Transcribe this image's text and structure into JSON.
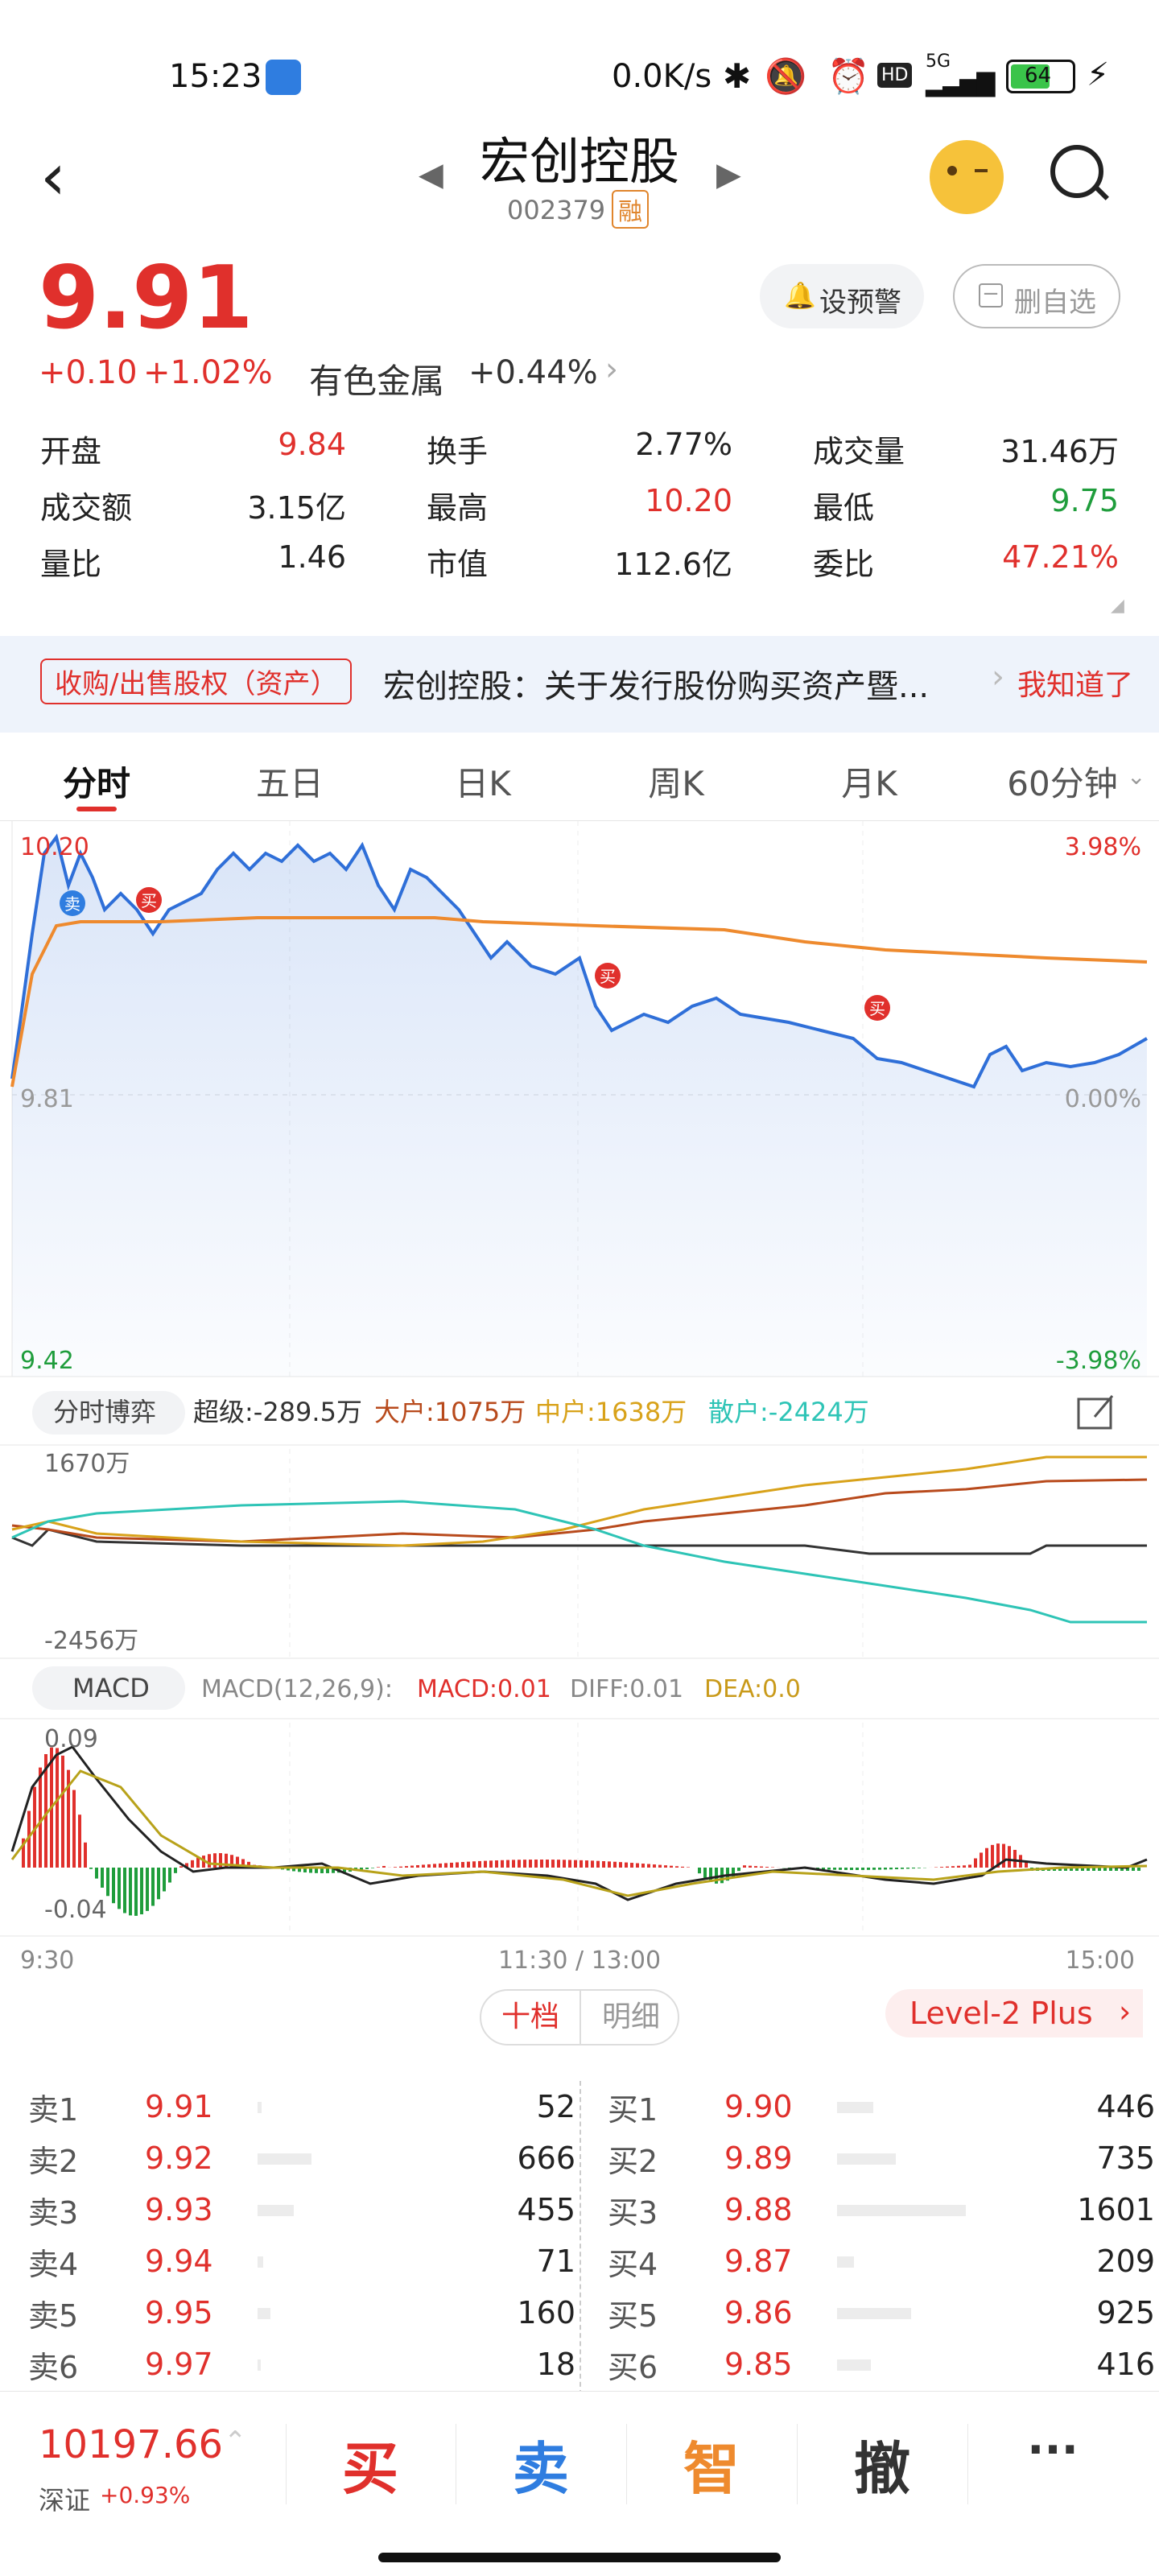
{
  "status": {
    "time": "15:23",
    "network_speed": "0.0K/s",
    "signal": "5G",
    "battery": "64"
  },
  "header": {
    "title": "宏创控股",
    "code": "002379",
    "margin_badge": "融"
  },
  "quote": {
    "price": "9.91",
    "change": "+0.10",
    "change_pct": "+1.02%",
    "sector": "有色金属",
    "sector_pct": "+0.44%",
    "alert_button": "设预警",
    "remove_watch_button": "删自选",
    "stats": [
      {
        "label": "开盘",
        "value": "9.84",
        "color": "red"
      },
      {
        "label": "换手",
        "value": "2.77%",
        "color": "dark"
      },
      {
        "label": "成交量",
        "value": "31.46万",
        "color": "dark"
      },
      {
        "label": "成交额",
        "value": "3.15亿",
        "color": "dark"
      },
      {
        "label": "最高",
        "value": "10.20",
        "color": "red"
      },
      {
        "label": "最低",
        "value": "9.75",
        "color": "green"
      },
      {
        "label": "量比",
        "value": "1.46",
        "color": "dark"
      },
      {
        "label": "市值",
        "value": "112.6亿",
        "color": "dark"
      },
      {
        "label": "委比",
        "value": "47.21%",
        "color": "red"
      }
    ]
  },
  "notice": {
    "tag": "收购/出售股权（资产）",
    "text": "宏创控股：关于发行股份购买资产暨...",
    "action": "我知道了"
  },
  "tabs": [
    "分时",
    "五日",
    "日K",
    "周K",
    "月K",
    "60分钟"
  ],
  "chart": {
    "price_high": "10.20",
    "price_mid": "9.81",
    "price_low": "9.42",
    "pct_high": "3.98%",
    "pct_mid": "0.00%",
    "pct_low": "-3.98%",
    "buy_marker": "买",
    "sell_marker": "卖",
    "flow_tab": "分时博弈",
    "flow_super": "超级:-289.5万",
    "flow_large": "大户:1075万",
    "flow_medium": "中户:1638万",
    "flow_retail": "散户:-2424万",
    "flow_top": "1670万",
    "flow_bottom": "-2456万",
    "macd_tab": "MACD",
    "macd_params": "MACD(12,26,9):",
    "macd_val": "MACD:0.01",
    "diff_val": "DIFF:0.01",
    "dea_val": "DEA:0.0",
    "macd_top": "0.09",
    "macd_bottom": "-0.04",
    "time_start": "9:30",
    "time_mid": "11:30 / 13:00",
    "time_end": "15:00",
    "colors": {
      "price_line": "#2f6fd8",
      "avg_line": "#ee8a2e",
      "super": "#333333",
      "large": "#b84a1c",
      "medium": "#d8a21a",
      "retail": "#2ec4b6"
    }
  },
  "orderbook": {
    "tab_active": "十档",
    "tab_other": "明细",
    "level2": "Level-2 Plus",
    "sells": [
      {
        "label": "卖1",
        "price": "9.91",
        "vol": "52"
      },
      {
        "label": "卖2",
        "price": "9.92",
        "vol": "666"
      },
      {
        "label": "卖3",
        "price": "9.93",
        "vol": "455"
      },
      {
        "label": "卖4",
        "price": "9.94",
        "vol": "71"
      },
      {
        "label": "卖5",
        "price": "9.95",
        "vol": "160"
      },
      {
        "label": "卖6",
        "price": "9.97",
        "vol": "18"
      }
    ],
    "buys": [
      {
        "label": "买1",
        "price": "9.90",
        "vol": "446"
      },
      {
        "label": "买2",
        "price": "9.89",
        "vol": "735"
      },
      {
        "label": "买3",
        "price": "9.88",
        "vol": "1601"
      },
      {
        "label": "买4",
        "price": "9.87",
        "vol": "209"
      },
      {
        "label": "买5",
        "price": "9.86",
        "vol": "925"
      },
      {
        "label": "买6",
        "price": "9.85",
        "vol": "416"
      }
    ]
  },
  "bottom": {
    "index_value": "10197.66",
    "index_name": "深证",
    "index_pct": "+0.93%",
    "buy": "买",
    "sell": "卖",
    "smart": "智",
    "cancel": "撤",
    "more": "···"
  }
}
